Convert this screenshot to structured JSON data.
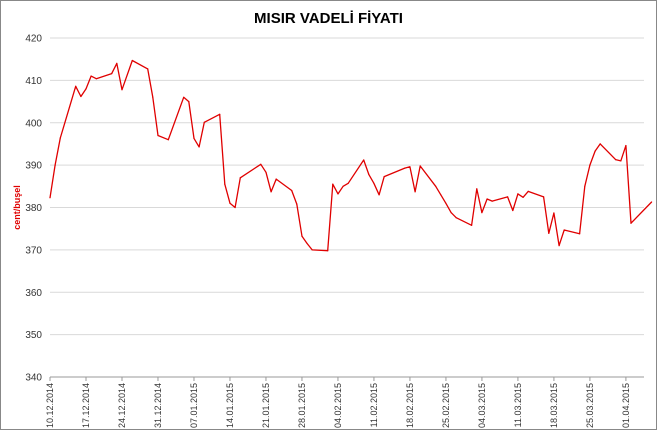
{
  "chart_data": {
    "type": "line",
    "title": "MISIR VADELİ FİYATI",
    "xlabel": "",
    "ylabel": "cent/buşel",
    "ylim": [
      340,
      420
    ],
    "yticks": [
      340,
      350,
      360,
      370,
      380,
      390,
      400,
      410,
      420
    ],
    "x_tick_labels": [
      "10.12.2014",
      "17.12.2014",
      "24.12.2014",
      "31.12.2014",
      "07.01.2015",
      "14.01.2015",
      "21.01.2015",
      "28.01.2015",
      "04.02.2015",
      "11.02.2015",
      "18.02.2015",
      "25.02.2015",
      "04.03.2015",
      "11.03.2015",
      "18.03.2015",
      "25.03.2015",
      "01.04.2015"
    ],
    "grid": true,
    "legend": "none",
    "line_color": "#e00000",
    "ylabel_color": "#e00000",
    "series": [
      {
        "x": [
          "2014-12-10",
          "2014-12-11",
          "2014-12-12",
          "2014-12-15",
          "2014-12-16",
          "2014-12-17",
          "2014-12-18",
          "2014-12-19",
          "2014-12-22",
          "2014-12-23",
          "2014-12-24",
          "2014-12-26",
          "2014-12-29",
          "2014-12-30",
          "2014-12-31",
          "2015-01-02",
          "2015-01-05",
          "2015-01-06",
          "2015-01-07",
          "2015-01-08",
          "2015-01-09",
          "2015-01-12",
          "2015-01-13",
          "2015-01-14",
          "2015-01-15",
          "2015-01-16",
          "2015-01-20",
          "2015-01-21",
          "2015-01-22",
          "2015-01-23",
          "2015-01-26",
          "2015-01-27",
          "2015-01-28",
          "2015-01-29",
          "2015-01-30",
          "2015-02-02",
          "2015-02-03",
          "2015-02-04",
          "2015-02-05",
          "2015-02-06",
          "2015-02-09",
          "2015-02-10",
          "2015-02-11",
          "2015-02-12",
          "2015-02-13",
          "2015-02-17",
          "2015-02-18",
          "2015-02-19",
          "2015-02-20",
          "2015-02-23",
          "2015-02-24",
          "2015-02-25",
          "2015-02-26",
          "2015-02-27",
          "2015-03-02",
          "2015-03-03",
          "2015-03-04",
          "2015-03-05",
          "2015-03-06",
          "2015-03-09",
          "2015-03-10",
          "2015-03-11",
          "2015-03-12",
          "2015-03-13",
          "2015-03-16",
          "2015-03-17",
          "2015-03-18",
          "2015-03-19",
          "2015-03-20",
          "2015-03-23",
          "2015-03-24",
          "2015-03-25",
          "2015-03-26",
          "2015-03-27",
          "2015-03-30",
          "2015-03-31",
          "2015-04-01",
          "2015-04-02",
          "2015-04-06"
        ],
        "y": [
          382.3,
          390.0,
          396.4,
          408.6,
          406.2,
          408.0,
          411.0,
          410.4,
          411.6,
          414.0,
          407.8,
          414.7,
          412.7,
          406.0,
          397.0,
          396.0,
          406.0,
          405.0,
          396.3,
          394.3,
          400.1,
          402.0,
          385.5,
          381.0,
          380.0,
          387.0,
          390.2,
          388.3,
          383.7,
          386.7,
          384.0,
          380.8,
          373.2,
          371.5,
          370.0,
          369.8,
          385.5,
          383.2,
          385.0,
          385.7,
          391.2,
          387.8,
          385.7,
          383.0,
          387.3,
          389.3,
          389.6,
          383.7,
          389.8,
          385.0,
          383.0,
          381.0,
          378.8,
          377.6,
          375.8,
          384.4,
          378.8,
          382.0,
          381.5,
          382.5,
          379.3,
          383.2,
          382.4,
          383.8,
          382.5,
          373.9,
          378.7,
          371.0,
          374.7,
          373.8,
          385.0,
          390.0,
          393.3,
          395.0,
          391.3,
          391.0,
          394.6,
          376.3,
          381.3
        ]
      }
    ]
  }
}
